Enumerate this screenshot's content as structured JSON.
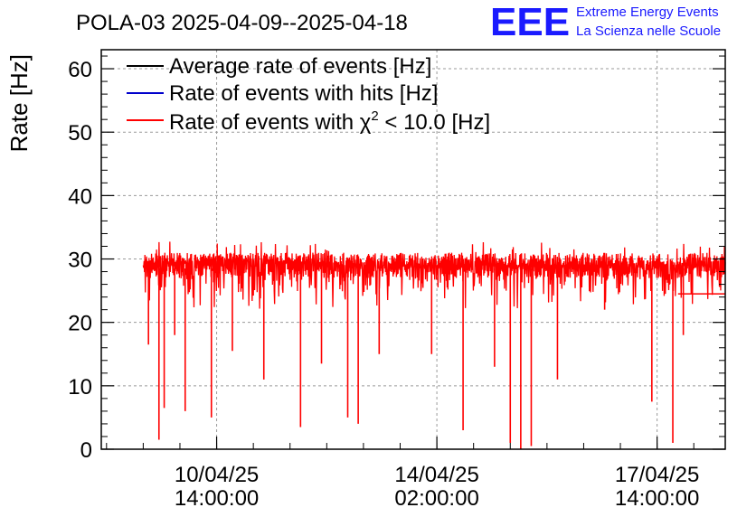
{
  "header": {
    "plot_title": "POLA-03 2025-04-09--2025-04-18",
    "logo_text": "EEE",
    "org_line1": "Extreme Energy Events",
    "org_line2": "La Scienza nelle Scuole"
  },
  "colors": {
    "logo": "#1a1aff",
    "average": "#000000",
    "hits": "#0000cc",
    "chi2": "#ff0000",
    "grid": "#9a9a9a"
  },
  "chart_data": {
    "type": "line",
    "title": "POLA-03 2025-04-09--2025-04-18",
    "ylabel": "Rate [Hz]",
    "xlabel": "",
    "ylim": [
      0,
      63
    ],
    "yticks": [
      0,
      10,
      20,
      30,
      40,
      50,
      60
    ],
    "y_tick_labels": [
      "0",
      "10",
      "20",
      "30",
      "40",
      "50",
      "60"
    ],
    "xlim": [
      "2025-04-08T18:00:00",
      "2025-04-18T16:00:00"
    ],
    "x_major_ticks": [
      "2025-04-10T14:00:00",
      "2025-04-14T02:00:00",
      "2025-04-17T14:00:00"
    ],
    "x_tick_labels": [
      {
        "date": "10/04/25",
        "time": "14:00:00"
      },
      {
        "date": "14/04/25",
        "time": "02:00:00"
      },
      {
        "date": "17/04/25",
        "time": "14:00:00"
      }
    ],
    "grid": true,
    "legend_position": "top-left",
    "series": [
      {
        "name": "Average rate of events [Hz]",
        "legend_label": "Average rate of events [Hz]",
        "color": "#000000"
      },
      {
        "name": "Rate of events with hits [Hz]",
        "legend_label": "Rate of events with hits [Hz]",
        "color": "#0000cc"
      },
      {
        "name": "Rate of events with χ² < 10.0 [Hz]",
        "legend_label": "Rate of events with χ",
        "legend_sup": "2",
        "legend_tail": " < 10.0 [Hz]",
        "color": "#ff0000",
        "band": {
          "start": "2025-04-09T10:00:00",
          "end": "2025-04-18T16:00:00",
          "typical_min": 27,
          "typical_max": 31
        },
        "dips": [
          {
            "t": "2025-04-09T12:00:00",
            "v": 16.5
          },
          {
            "t": "2025-04-09T16:00:00",
            "v": 1.5
          },
          {
            "t": "2025-04-09T18:00:00",
            "v": 6.5
          },
          {
            "t": "2025-04-09T22:00:00",
            "v": 18
          },
          {
            "t": "2025-04-10T02:00:00",
            "v": 6
          },
          {
            "t": "2025-04-10T12:00:00",
            "v": 5
          },
          {
            "t": "2025-04-10T20:00:00",
            "v": 15.5
          },
          {
            "t": "2025-04-11T08:00:00",
            "v": 11
          },
          {
            "t": "2025-04-11T22:00:00",
            "v": 3.5
          },
          {
            "t": "2025-04-12T06:00:00",
            "v": 13.5
          },
          {
            "t": "2025-04-12T16:00:00",
            "v": 5
          },
          {
            "t": "2025-04-12T20:00:00",
            "v": 4
          },
          {
            "t": "2025-04-13T04:00:00",
            "v": 15
          },
          {
            "t": "2025-04-14T00:00:00",
            "v": 15
          },
          {
            "t": "2025-04-14T12:00:00",
            "v": 3
          },
          {
            "t": "2025-04-15T00:00:00",
            "v": 13
          },
          {
            "t": "2025-04-15T06:00:00",
            "v": 1
          },
          {
            "t": "2025-04-15T10:00:00",
            "v": 0
          },
          {
            "t": "2025-04-15T14:00:00",
            "v": 0.5
          },
          {
            "t": "2025-04-16T00:00:00",
            "v": 11
          },
          {
            "t": "2025-04-16T18:00:00",
            "v": 22
          },
          {
            "t": "2025-04-17T12:00:00",
            "v": 7.5
          },
          {
            "t": "2025-04-17T20:00:00",
            "v": 1
          },
          {
            "t": "2025-04-18T00:00:00",
            "v": 18
          }
        ],
        "tail_level": {
          "start": "2025-04-17T22:00:00",
          "end": "2025-04-18T16:00:00",
          "v": 24.5
        }
      }
    ]
  }
}
